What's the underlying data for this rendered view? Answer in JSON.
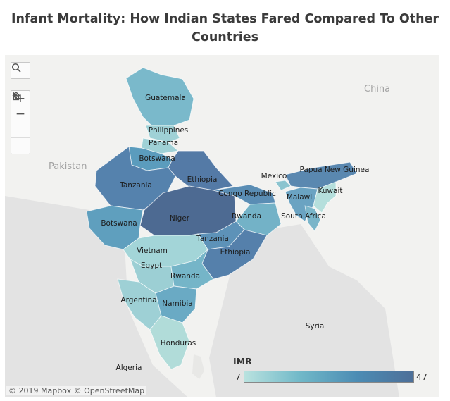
{
  "title": "Infant Mortality: How Indian States Fared Compared To Other Countries",
  "attribution": "© 2019 Mapbox © OpenStreetMap",
  "background_labels": {
    "china": "China",
    "pakistan": "Pakistan"
  },
  "legend": {
    "title": "IMR",
    "min": "7",
    "max": "47",
    "min_value": 7,
    "max_value": 47,
    "colors": [
      "#b9e2df",
      "#4d6f98"
    ]
  },
  "controls": {
    "search_icon": "search-icon",
    "zoom_in": "+",
    "zoom_out": "−",
    "home_icon": "home-icon",
    "play_icon": "play-icon"
  },
  "regions": [
    {
      "label": "Guatemala",
      "color": "#7ab9cb"
    },
    {
      "label": "Philippines",
      "color": "#9fd1d6"
    },
    {
      "label": "Panama",
      "color": "#9fd1d6"
    },
    {
      "label": "Botswana",
      "color": "#5b9cbd"
    },
    {
      "label": "Ethiopia",
      "color": "#547aa6"
    },
    {
      "label": "Tanzania",
      "color": "#5582ad"
    },
    {
      "label": "Niger",
      "color": "#4d6a92"
    },
    {
      "label": "Botswana",
      "color": "#5f9fbe"
    },
    {
      "label": "Congo Republic",
      "color": "#5a8db4"
    },
    {
      "label": "Rwanda",
      "color": "#73b2c7"
    },
    {
      "label": "Tanzania",
      "color": "#5d92b8"
    },
    {
      "label": "Ethiopia",
      "color": "#5580ab"
    },
    {
      "label": "Vietnam",
      "color": "#a3d5d8"
    },
    {
      "label": "Egypt",
      "color": "#9ccfd4"
    },
    {
      "label": "Rwanda",
      "color": "#75b5c8"
    },
    {
      "label": "Argentina",
      "color": "#9ed0d5"
    },
    {
      "label": "Namibia",
      "color": "#6aaac4"
    },
    {
      "label": "Honduras",
      "color": "#b1dcd9"
    },
    {
      "label": "Algeria",
      "color": "#b9e2df"
    },
    {
      "label": "Mexico",
      "color": "#8bc4cf"
    },
    {
      "label": "Papua New Guinea",
      "color": "#5a88b0"
    },
    {
      "label": "Malawi",
      "color": "#6aa3c2"
    },
    {
      "label": "Kuwait",
      "color": "#b5dfdc"
    },
    {
      "label": "South Africa",
      "color": "#7ab5c9"
    },
    {
      "label": "Syria",
      "color": "#a8d8d9"
    }
  ]
}
